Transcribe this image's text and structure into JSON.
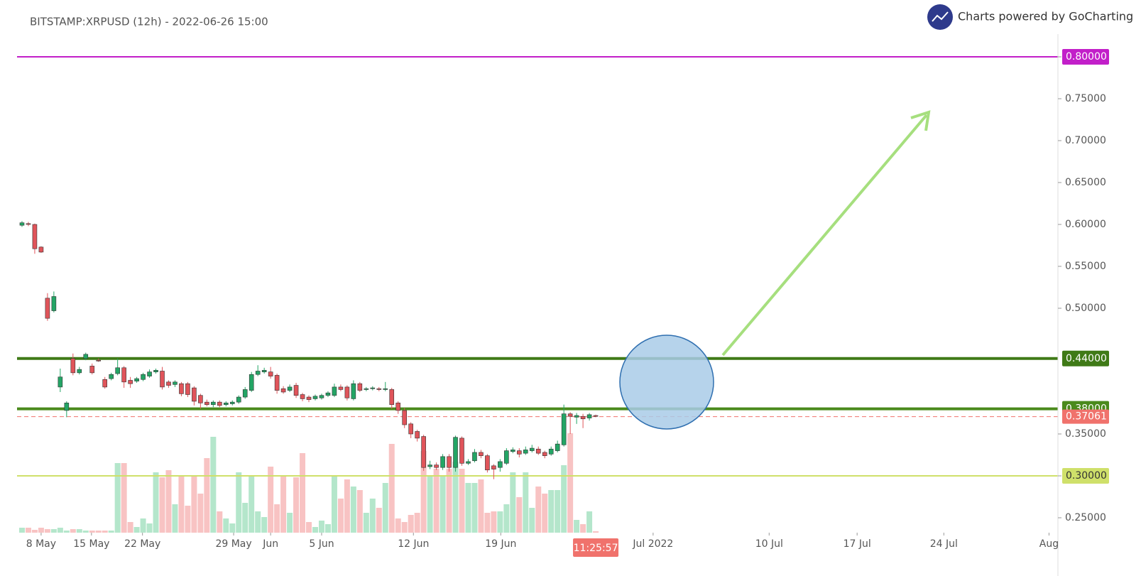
{
  "chart_data": {
    "type": "candlestick",
    "title": "BITSTAMP:XRPUSD (12h) - 2022-06-26 15:00",
    "credit": "Charts powered by GoCharting",
    "countdown": "11:25:57",
    "up_color": "#23a565",
    "down_color": "#e0545a",
    "up_volume_color": "#b4e6cb",
    "down_volume_color": "#f8c3c3",
    "ylim": [
      0.2322,
      0.8678
    ],
    "yticks": [
      {
        "value": 0.25,
        "label": "0.25000"
      },
      {
        "value": 0.3,
        "label": "0.30000"
      },
      {
        "value": 0.35,
        "label": "0.35000"
      },
      {
        "value": 0.5,
        "label": "0.50000"
      },
      {
        "value": 0.55,
        "label": "0.55000"
      },
      {
        "value": 0.6,
        "label": "0.60000"
      },
      {
        "value": 0.65,
        "label": "0.65000"
      },
      {
        "value": 0.7,
        "label": "0.70000"
      },
      {
        "value": 0.75,
        "label": "0.75000"
      },
      {
        "value": 0.8,
        "label": "0.80000"
      }
    ],
    "xlim": [
      -3.45,
      162.5
    ],
    "xticks": [
      {
        "value": 3.0,
        "label": "8 May"
      },
      {
        "value": 10.9,
        "label": "15 May"
      },
      {
        "value": 18.9,
        "label": "22 May"
      },
      {
        "value": 33.2,
        "label": "29 May"
      },
      {
        "value": 39.0,
        "label": "Jun"
      },
      {
        "value": 47.0,
        "label": "5 Jun"
      },
      {
        "value": 61.4,
        "label": "12 Jun"
      },
      {
        "value": 75.1,
        "label": "19 Jun"
      },
      {
        "value": 99.0,
        "label": "Jul 2022"
      },
      {
        "value": 117.2,
        "label": "10 Jul"
      },
      {
        "value": 131.0,
        "label": "17 Jul"
      },
      {
        "value": 144.6,
        "label": "24 Jul"
      },
      {
        "value": 161.1,
        "label": "Aug"
      }
    ],
    "levels": [
      {
        "value": 0.8,
        "label": "0.80000",
        "color": "#c21fc9",
        "width": 2
      },
      {
        "value": 0.44,
        "label": "0.44000",
        "color": "#3f7a17",
        "width": 4
      },
      {
        "value": 0.38,
        "label": "0.38000",
        "color": "#4a8a1c",
        "width": 4
      },
      {
        "value": 0.3,
        "label": "0.30000",
        "color": "#cfe06a",
        "width": 2
      }
    ],
    "last_price": {
      "value": 0.37061,
      "label": "0.37061",
      "color": "#f0726c"
    },
    "volume_lim": [
      0,
      750
    ],
    "ohlc": [
      [
        0.599,
        0.604,
        0.597,
        0.602
      ],
      [
        0.601,
        0.603,
        0.598,
        0.6
      ],
      [
        0.6,
        0.601,
        0.565,
        0.571
      ],
      [
        0.573,
        0.574,
        0.566,
        0.567
      ],
      [
        0.512,
        0.518,
        0.485,
        0.488
      ],
      [
        0.497,
        0.52,
        0.495,
        0.514
      ],
      [
        0.406,
        0.428,
        0.4,
        0.418
      ],
      [
        0.378,
        0.389,
        0.37,
        0.387
      ],
      [
        0.44,
        0.446,
        0.42,
        0.423
      ],
      [
        0.423,
        0.43,
        0.421,
        0.427
      ],
      [
        0.44,
        0.447,
        0.438,
        0.445
      ],
      [
        0.431,
        0.434,
        0.421,
        0.423
      ],
      [
        0.438,
        0.44,
        0.436,
        0.437
      ],
      [
        0.415,
        0.418,
        0.404,
        0.406
      ],
      [
        0.416,
        0.423,
        0.414,
        0.421
      ],
      [
        0.422,
        0.44,
        0.42,
        0.429
      ],
      [
        0.429,
        0.431,
        0.405,
        0.412
      ],
      [
        0.414,
        0.418,
        0.405,
        0.41
      ],
      [
        0.413,
        0.418,
        0.411,
        0.416
      ],
      [
        0.415,
        0.423,
        0.413,
        0.421
      ],
      [
        0.419,
        0.427,
        0.417,
        0.424
      ],
      [
        0.424,
        0.428,
        0.422,
        0.426
      ],
      [
        0.425,
        0.43,
        0.403,
        0.406
      ],
      [
        0.412,
        0.414,
        0.405,
        0.408
      ],
      [
        0.409,
        0.414,
        0.406,
        0.412
      ],
      [
        0.41,
        0.412,
        0.395,
        0.398
      ],
      [
        0.41,
        0.412,
        0.394,
        0.397
      ],
      [
        0.405,
        0.407,
        0.384,
        0.389
      ],
      [
        0.396,
        0.398,
        0.38,
        0.387
      ],
      [
        0.388,
        0.391,
        0.383,
        0.385
      ],
      [
        0.385,
        0.39,
        0.382,
        0.388
      ],
      [
        0.388,
        0.39,
        0.382,
        0.384
      ],
      [
        0.385,
        0.389,
        0.383,
        0.387
      ],
      [
        0.386,
        0.39,
        0.384,
        0.388
      ],
      [
        0.388,
        0.396,
        0.386,
        0.394
      ],
      [
        0.394,
        0.406,
        0.392,
        0.403
      ],
      [
        0.402,
        0.424,
        0.4,
        0.421
      ],
      [
        0.421,
        0.432,
        0.419,
        0.425
      ],
      [
        0.424,
        0.429,
        0.422,
        0.426
      ],
      [
        0.424,
        0.43,
        0.416,
        0.419
      ],
      [
        0.42,
        0.422,
        0.398,
        0.402
      ],
      [
        0.404,
        0.407,
        0.398,
        0.4
      ],
      [
        0.402,
        0.409,
        0.4,
        0.406
      ],
      [
        0.408,
        0.411,
        0.393,
        0.396
      ],
      [
        0.397,
        0.399,
        0.389,
        0.392
      ],
      [
        0.394,
        0.396,
        0.388,
        0.391
      ],
      [
        0.392,
        0.397,
        0.39,
        0.395
      ],
      [
        0.393,
        0.398,
        0.391,
        0.396
      ],
      [
        0.396,
        0.401,
        0.394,
        0.399
      ],
      [
        0.396,
        0.41,
        0.394,
        0.406
      ],
      [
        0.406,
        0.409,
        0.401,
        0.403
      ],
      [
        0.406,
        0.408,
        0.39,
        0.393
      ],
      [
        0.392,
        0.414,
        0.39,
        0.41
      ],
      [
        0.41,
        0.412,
        0.4,
        0.402
      ],
      [
        0.403,
        0.406,
        0.401,
        0.404
      ],
      [
        0.404,
        0.407,
        0.402,
        0.405
      ],
      [
        0.404,
        0.406,
        0.401,
        0.403
      ],
      [
        0.403,
        0.412,
        0.401,
        0.404
      ],
      [
        0.403,
        0.405,
        0.38,
        0.385
      ],
      [
        0.387,
        0.389,
        0.374,
        0.378
      ],
      [
        0.378,
        0.381,
        0.357,
        0.361
      ],
      [
        0.362,
        0.364,
        0.345,
        0.35
      ],
      [
        0.353,
        0.355,
        0.341,
        0.345
      ],
      [
        0.347,
        0.349,
        0.306,
        0.31
      ],
      [
        0.311,
        0.318,
        0.308,
        0.313
      ],
      [
        0.313,
        0.316,
        0.307,
        0.31
      ],
      [
        0.31,
        0.326,
        0.307,
        0.323
      ],
      [
        0.323,
        0.326,
        0.305,
        0.31
      ],
      [
        0.31,
        0.348,
        0.305,
        0.346
      ],
      [
        0.345,
        0.347,
        0.312,
        0.315
      ],
      [
        0.315,
        0.32,
        0.313,
        0.317
      ],
      [
        0.318,
        0.332,
        0.316,
        0.328
      ],
      [
        0.328,
        0.331,
        0.321,
        0.324
      ],
      [
        0.324,
        0.326,
        0.304,
        0.307
      ],
      [
        0.312,
        0.314,
        0.296,
        0.308
      ],
      [
        0.31,
        0.32,
        0.305,
        0.317
      ],
      [
        0.315,
        0.333,
        0.313,
        0.33
      ],
      [
        0.329,
        0.334,
        0.327,
        0.331
      ],
      [
        0.33,
        0.333,
        0.322,
        0.326
      ],
      [
        0.327,
        0.335,
        0.325,
        0.331
      ],
      [
        0.33,
        0.337,
        0.328,
        0.333
      ],
      [
        0.332,
        0.335,
        0.325,
        0.327
      ],
      [
        0.328,
        0.33,
        0.321,
        0.324
      ],
      [
        0.326,
        0.335,
        0.324,
        0.332
      ],
      [
        0.33,
        0.342,
        0.328,
        0.338
      ],
      [
        0.337,
        0.385,
        0.335,
        0.374
      ],
      [
        0.374,
        0.376,
        0.35,
        0.371
      ],
      [
        0.37,
        0.375,
        0.362,
        0.372
      ],
      [
        0.371,
        0.374,
        0.357,
        0.368
      ],
      [
        0.369,
        0.375,
        0.366,
        0.373
      ],
      [
        0.372,
        0.373,
        0.37,
        0.371
      ]
    ],
    "volume": [
      7,
      7,
      4,
      7,
      5,
      5,
      7,
      3,
      5,
      5,
      3,
      3,
      3,
      3,
      3,
      98,
      98,
      15,
      8,
      20,
      13,
      85,
      78,
      88,
      40,
      80,
      38,
      80,
      55,
      105,
      135,
      30,
      20,
      13,
      85,
      42,
      80,
      30,
      22,
      93,
      40,
      80,
      28,
      78,
      112,
      15,
      8,
      17,
      12,
      80,
      48,
      75,
      65,
      60,
      28,
      48,
      35,
      70,
      125,
      20,
      15,
      25,
      28,
      115,
      80,
      90,
      80,
      90,
      100,
      90,
      70,
      70,
      75,
      28,
      30,
      30,
      40,
      85,
      50,
      85,
      35,
      65,
      55,
      60,
      60,
      95,
      140,
      18,
      12,
      30,
      2
    ]
  }
}
